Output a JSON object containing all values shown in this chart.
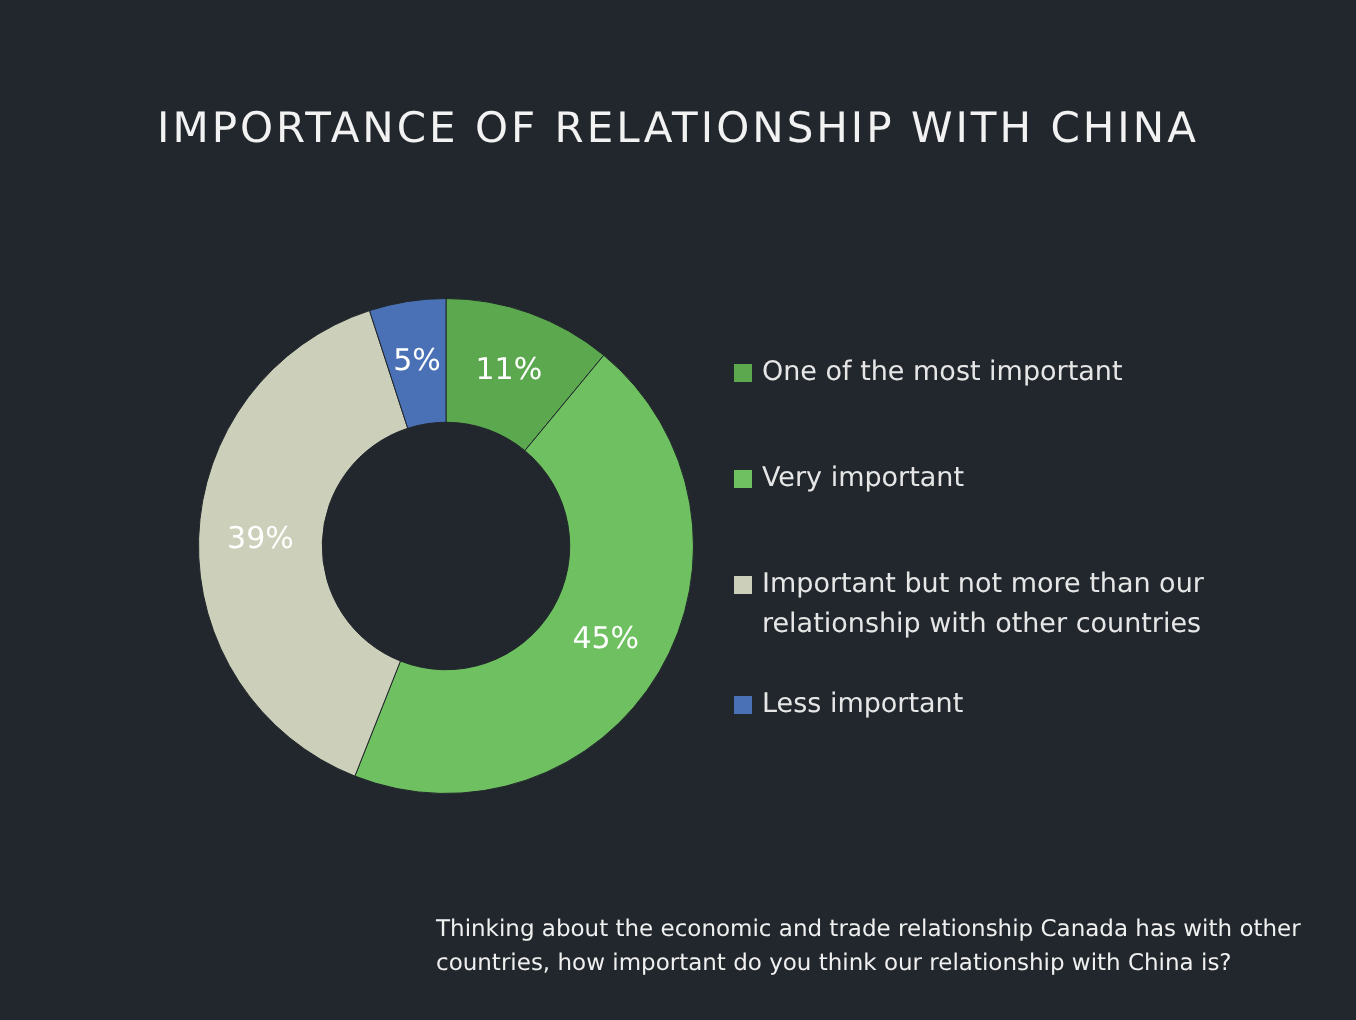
{
  "chart_data": {
    "type": "donut",
    "title": "IMPORTANCE OF RELATIONSHIP WITH CHINA",
    "categories": [
      "One of the most important",
      "Very important",
      "Important but not more than our relationship with other countries",
      "Less important"
    ],
    "values": [
      11,
      45,
      39,
      5
    ],
    "colors": [
      "#5ca84f",
      "#6fc060",
      "#cccfb9",
      "#4a71b5"
    ],
    "value_labels": [
      "11%",
      "45%",
      "39%",
      "5%"
    ],
    "legend": "right",
    "annotations": [
      "Thinking about the economic and trade relationship Canada has with other countries, how important do you think our relationship with China is?"
    ]
  }
}
